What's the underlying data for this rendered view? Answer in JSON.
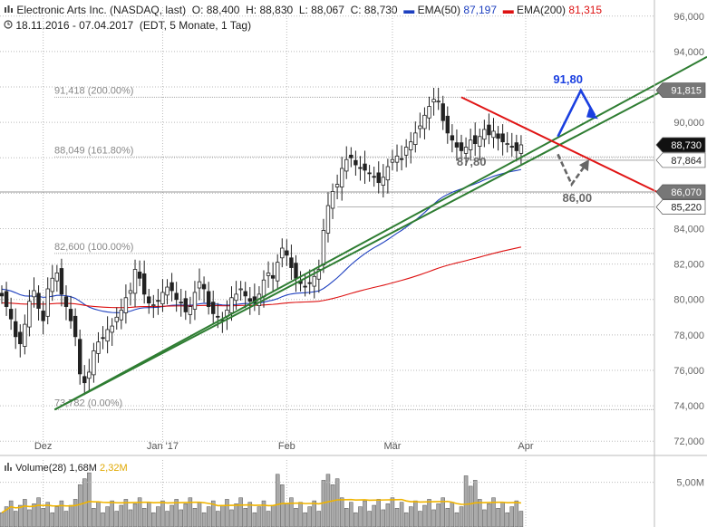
{
  "header": {
    "symbol_line": "Electronic Arts Inc. (NASDAQ, last)",
    "open": "O: 88,400",
    "high": "H: 88,830",
    "low": "L: 88,067",
    "close": "C: 88,730",
    "ema50_label": "EMA(50)",
    "ema50_value": "87,197",
    "ema200_label": "EMA(200)",
    "ema200_value": "81,315",
    "range_line": "18.11.2016 - 07.04.2017",
    "info_line": "(EDT, 5 Monate, 1 Tag)"
  },
  "volume_header": {
    "label": "Volume(28)",
    "value": "1,68M",
    "ma_value": "2,32M"
  },
  "colors": {
    "ema50": "#1d3fbf",
    "ema200": "#dd1111",
    "trend_green": "#2e7d32",
    "resistance_red": "#e01515",
    "projection_blue": "#1a3fe0",
    "projection_gray": "#666666",
    "candle": "#222222",
    "volume_bar": "#aaaaaa",
    "volume_ma": "#f0b400"
  },
  "icons": {
    "chart_icon": "bar-chart-icon",
    "clock_icon": "clock-icon"
  },
  "chart_data": {
    "type": "candlestick",
    "ylim": [
      71.5,
      96.5
    ],
    "yticks": [
      "96,000",
      "94,000",
      "92,000",
      "90,000",
      "88,000",
      "86,000",
      "84,000",
      "82,000",
      "80,000",
      "78,000",
      "76,000",
      "74,000",
      "72,000"
    ],
    "ytick_values": [
      96,
      94,
      92,
      90,
      88,
      86,
      84,
      82,
      80,
      78,
      76,
      74,
      72
    ],
    "xticks": [
      "Dez",
      "Jan '17",
      "Feb",
      "Mär",
      "Apr"
    ],
    "xtick_index": [
      9,
      35,
      62,
      85,
      114
    ],
    "closes": [
      80.2,
      79.6,
      78.9,
      77.9,
      77.5,
      78.6,
      79.9,
      80.5,
      79.5,
      78.8,
      80.6,
      81.2,
      81.5,
      80.3,
      79.6,
      78.8,
      77.9,
      75.8,
      75.3,
      75.9,
      77.1,
      77.6,
      77.8,
      78.3,
      78.5,
      79.0,
      79.4,
      80.1,
      80.5,
      81.7,
      81.2,
      80.3,
      79.8,
      79.7,
      79.9,
      80.4,
      80.7,
      80.5,
      80.0,
      79.8,
      79.3,
      79.6,
      80.4,
      81.0,
      80.6,
      79.6,
      79.2,
      79.0,
      78.8,
      79.4,
      80.1,
      80.3,
      80.6,
      80.2,
      79.9,
      79.8,
      80.3,
      81.1,
      81.5,
      81.2,
      82.1,
      82.9,
      82.5,
      81.8,
      81.2,
      80.9,
      80.7,
      80.9,
      81.3,
      81.7,
      83.9,
      85.3,
      86.1,
      86.5,
      87.4,
      87.9,
      88.0,
      87.6,
      87.4,
      87.3,
      87.1,
      86.9,
      86.6,
      86.9,
      87.5,
      87.9,
      88.1,
      87.9,
      88.6,
      88.9,
      89.4,
      89.8,
      90.4,
      90.9,
      91.3,
      91.2,
      90.1,
      89.4,
      89.0,
      88.6,
      88.4,
      88.6,
      89.0,
      88.8,
      89.2,
      89.6,
      89.3,
      89.5,
      89.1,
      88.9,
      88.8,
      88.6,
      88.4,
      88.73
    ],
    "fib_levels": [
      {
        "label": "91,418 (200.00%)",
        "value": 91.418
      },
      {
        "label": "88,049 (161.80%)",
        "value": 88.049
      },
      {
        "label": "82,600 (100.00%)",
        "value": 82.6
      },
      {
        "label": "73,782 (0.00%)",
        "value": 73.782
      }
    ],
    "right_tags": [
      {
        "label": "91,815",
        "value": 91.815,
        "style": "gray"
      },
      {
        "label": "88,730",
        "value": 88.73,
        "style": "black"
      },
      {
        "label": "87,864",
        "value": 87.864,
        "style": "white"
      },
      {
        "label": "86,070",
        "value": 86.07,
        "style": "gray"
      },
      {
        "label": "85,220",
        "value": 85.22,
        "style": "white"
      }
    ],
    "annotations": [
      {
        "label": "91,80",
        "value": 91.8,
        "color": "blue"
      },
      {
        "label": "87,80",
        "value": 87.8,
        "color": "gray"
      },
      {
        "label": "86,00",
        "value": 86.0,
        "color": "gray"
      }
    ],
    "volume_note": "volume bars in millions",
    "volume_ylabel": "5,00M"
  }
}
